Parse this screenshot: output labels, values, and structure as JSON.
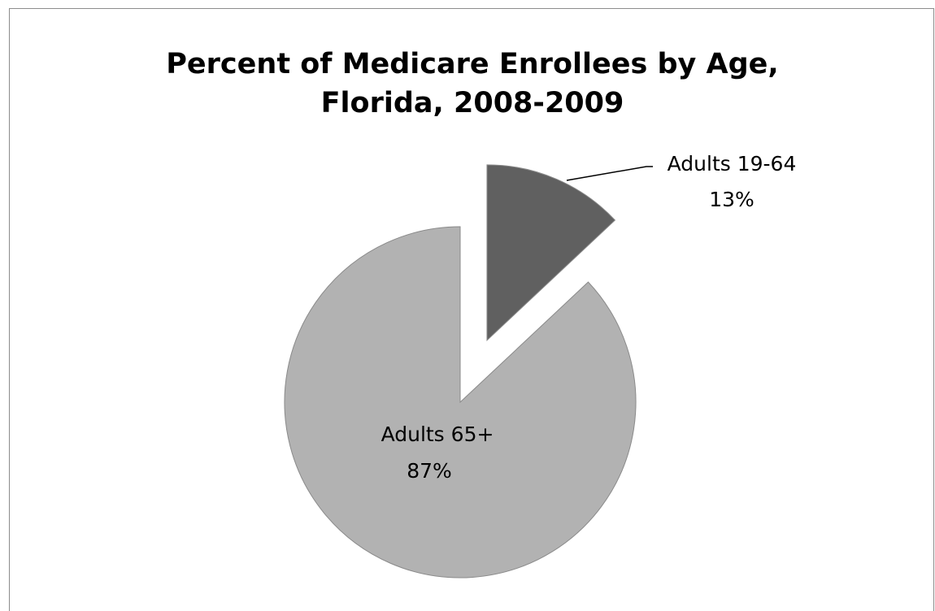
{
  "chart_data": {
    "type": "pie",
    "title_lines": [
      "Percent of Medicare Enrollees by Age,",
      "Florida, 2008-2009"
    ],
    "slices": [
      {
        "name": "Adults 65+",
        "value": 87,
        "label": "87%",
        "color": "#b2b2b2",
        "exploded": false
      },
      {
        "name": "Adults 19-64",
        "value": 13,
        "label": "13%",
        "color": "#606060",
        "exploded": true
      }
    ],
    "legend": "none",
    "data_labels": "category and percent"
  }
}
